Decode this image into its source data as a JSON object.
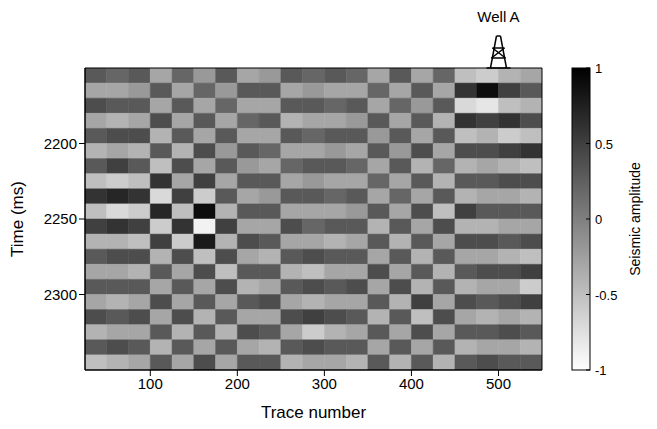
{
  "chart_data": {
    "type": "heatmap",
    "xlabel": "Trace number",
    "ylabel": "Time (ms)",
    "xlim": [
      25,
      550
    ],
    "xticks": [
      100,
      200,
      300,
      400,
      500
    ],
    "ylim": [
      2150,
      2350
    ],
    "yticks": [
      2200,
      2250,
      2300
    ],
    "annotations": [
      {
        "text": "Well A",
        "x": 500
      }
    ],
    "x_edges": [
      25,
      50,
      75,
      100,
      125,
      150,
      175,
      200,
      225,
      250,
      275,
      300,
      325,
      350,
      375,
      400,
      425,
      450,
      475,
      500,
      525,
      550
    ],
    "y_edges": [
      2150,
      2160,
      2170,
      2180,
      2190,
      2200,
      2210,
      2220,
      2230,
      2240,
      2250,
      2260,
      2270,
      2280,
      2290,
      2300,
      2310,
      2320,
      2330,
      2340,
      2350
    ],
    "cells": [
      [
        0.3,
        0.2,
        0.3,
        -0.3,
        0.2,
        -0.2,
        0.3,
        -0.3,
        -0.2,
        0.3,
        0.2,
        0.3,
        0.2,
        -0.3,
        0.3,
        -0.3,
        0.2,
        -0.5,
        -0.6,
        -0.4,
        -0.3
      ],
      [
        -0.3,
        -0.3,
        -0.2,
        0.3,
        -0.3,
        0.2,
        -0.2,
        0.3,
        0.3,
        -0.3,
        -0.2,
        -0.3,
        -0.3,
        0.2,
        -0.3,
        0.3,
        -0.3,
        0.6,
        0.9,
        0.5,
        0.3
      ],
      [
        0.4,
        0.3,
        0.3,
        -0.3,
        0.3,
        -0.3,
        0.2,
        -0.3,
        -0.3,
        0.3,
        0.3,
        0.2,
        0.3,
        -0.3,
        0.2,
        -0.2,
        0.3,
        -0.7,
        -0.8,
        -0.5,
        -0.4
      ],
      [
        -0.3,
        -0.4,
        -0.3,
        0.4,
        -0.3,
        0.3,
        -0.3,
        0.2,
        0.3,
        -0.4,
        -0.3,
        -0.3,
        -0.2,
        0.3,
        -0.3,
        0.3,
        -0.4,
        0.6,
        0.5,
        0.6,
        0.4
      ],
      [
        0.3,
        0.4,
        0.4,
        -0.4,
        0.3,
        -0.3,
        0.3,
        -0.3,
        -0.3,
        0.3,
        0.2,
        0.3,
        0.3,
        -0.2,
        0.3,
        -0.3,
        0.3,
        -0.5,
        -0.4,
        -0.6,
        -0.5
      ],
      [
        -0.4,
        -0.3,
        -0.4,
        0.3,
        -0.4,
        0.4,
        -0.2,
        0.3,
        0.2,
        -0.3,
        -0.3,
        -0.2,
        -0.3,
        0.3,
        -0.2,
        0.4,
        -0.3,
        0.4,
        0.4,
        0.5,
        0.6
      ],
      [
        0.3,
        0.5,
        0.3,
        -0.5,
        0.4,
        -0.3,
        0.3,
        -0.2,
        -0.3,
        0.2,
        0.3,
        0.3,
        0.2,
        -0.3,
        0.3,
        -0.4,
        0.2,
        -0.4,
        -0.3,
        -0.4,
        -0.5
      ],
      [
        -0.5,
        -0.6,
        -0.5,
        0.6,
        -0.3,
        0.5,
        -0.3,
        0.3,
        0.3,
        -0.3,
        -0.2,
        -0.3,
        -0.3,
        0.2,
        -0.3,
        0.3,
        -0.4,
        0.3,
        0.3,
        0.4,
        0.4
      ],
      [
        0.6,
        0.7,
        0.6,
        -0.7,
        0.5,
        -0.6,
        0.3,
        -0.3,
        -0.2,
        0.3,
        0.3,
        0.2,
        0.3,
        -0.3,
        0.2,
        -0.3,
        0.3,
        -0.4,
        -0.3,
        -0.3,
        -0.4
      ],
      [
        -0.5,
        -0.7,
        -0.6,
        0.7,
        -0.5,
        0.9,
        -0.4,
        0.3,
        0.3,
        -0.3,
        -0.3,
        -0.3,
        -0.2,
        0.3,
        -0.3,
        0.4,
        -0.5,
        0.5,
        0.3,
        0.3,
        0.3
      ],
      [
        0.5,
        0.6,
        0.5,
        -0.6,
        0.6,
        -0.9,
        0.5,
        -0.3,
        -0.3,
        0.4,
        0.2,
        0.3,
        0.3,
        -0.4,
        0.3,
        -0.3,
        0.4,
        -0.4,
        -0.4,
        -0.3,
        -0.3
      ],
      [
        -0.4,
        -0.4,
        -0.5,
        0.5,
        -0.6,
        0.8,
        -0.4,
        0.4,
        0.3,
        -0.3,
        -0.3,
        -0.4,
        -0.3,
        0.3,
        -0.4,
        0.3,
        -0.3,
        0.4,
        0.4,
        0.3,
        0.4
      ],
      [
        0.3,
        0.4,
        0.4,
        -0.4,
        0.4,
        -0.5,
        0.4,
        -0.3,
        -0.4,
        0.3,
        0.4,
        0.3,
        0.3,
        -0.3,
        0.3,
        -0.4,
        0.3,
        -0.3,
        -0.3,
        -0.4,
        -0.5
      ],
      [
        -0.3,
        -0.3,
        -0.4,
        0.3,
        -0.3,
        0.4,
        -0.5,
        0.3,
        0.3,
        -0.4,
        -0.5,
        -0.3,
        -0.3,
        0.4,
        -0.3,
        0.3,
        -0.4,
        0.3,
        0.4,
        0.4,
        0.5
      ],
      [
        0.3,
        0.3,
        0.3,
        -0.3,
        0.3,
        -0.3,
        0.4,
        -0.4,
        -0.3,
        0.3,
        0.4,
        0.3,
        0.4,
        -0.3,
        0.4,
        -0.4,
        0.3,
        -0.4,
        -0.3,
        -0.3,
        -0.6
      ],
      [
        -0.3,
        -0.4,
        -0.3,
        0.4,
        -0.3,
        0.3,
        -0.3,
        0.3,
        0.4,
        -0.3,
        -0.4,
        -0.3,
        -0.3,
        0.3,
        -0.4,
        0.5,
        -0.3,
        0.4,
        0.3,
        0.4,
        0.5
      ],
      [
        0.4,
        0.3,
        0.4,
        -0.3,
        0.4,
        -0.4,
        0.3,
        -0.3,
        -0.3,
        0.4,
        0.5,
        0.4,
        0.3,
        -0.4,
        0.3,
        -0.5,
        0.4,
        -0.3,
        -0.4,
        -0.3,
        -0.4
      ],
      [
        -0.4,
        -0.3,
        -0.3,
        0.3,
        -0.4,
        0.3,
        -0.4,
        0.4,
        0.3,
        -0.3,
        -0.6,
        -0.4,
        -0.3,
        0.3,
        -0.3,
        0.4,
        -0.3,
        0.3,
        0.3,
        0.4,
        0.3
      ],
      [
        0.3,
        0.4,
        0.3,
        -0.4,
        0.3,
        -0.3,
        0.3,
        -0.3,
        -0.4,
        0.3,
        0.4,
        0.3,
        0.3,
        -0.3,
        0.3,
        -0.3,
        0.3,
        -0.4,
        -0.3,
        -0.3,
        -0.4
      ],
      [
        -0.5,
        -0.4,
        -0.3,
        0.3,
        -0.3,
        0.4,
        -0.3,
        0.3,
        0.3,
        -0.4,
        -0.3,
        -0.3,
        -0.4,
        0.3,
        -0.4,
        0.3,
        -0.4,
        0.3,
        0.4,
        0.3,
        0.3
      ]
    ],
    "colorbar": {
      "range": [
        -1,
        1
      ],
      "ticks": [
        -1,
        -0.5,
        0,
        0.5,
        1
      ],
      "label": "Seismic amplitude",
      "colors": [
        "#ffffff",
        "#000000"
      ]
    }
  }
}
